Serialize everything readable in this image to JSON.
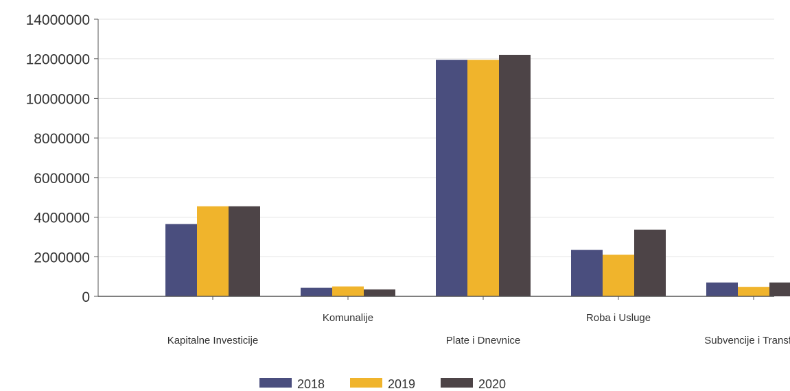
{
  "chart_data": {
    "type": "bar",
    "categories": [
      "Kapitalne Investicije",
      "Komunalije",
      "Plate i Dnevnice",
      "Roba i Usluge",
      "Subvencije i Transferi"
    ],
    "series": [
      {
        "name": "2018",
        "color": "#4a4e7e",
        "values": [
          3650000,
          430000,
          11950000,
          2350000,
          700000
        ]
      },
      {
        "name": "2019",
        "color": "#f0b42c",
        "values": [
          4550000,
          500000,
          11950000,
          2100000,
          480000
        ]
      },
      {
        "name": "2020",
        "color": "#4d4447",
        "values": [
          4550000,
          350000,
          12200000,
          3370000,
          700000
        ]
      }
    ],
    "ylim": [
      0,
      14000000
    ],
    "yticks": [
      "0",
      "2000000",
      "4000000",
      "6000000",
      "8000000",
      "10000000",
      "12000000",
      "14000000"
    ],
    "grid": true,
    "legend": "bottom-center",
    "title": "",
    "xlabel": "",
    "ylabel": ""
  }
}
